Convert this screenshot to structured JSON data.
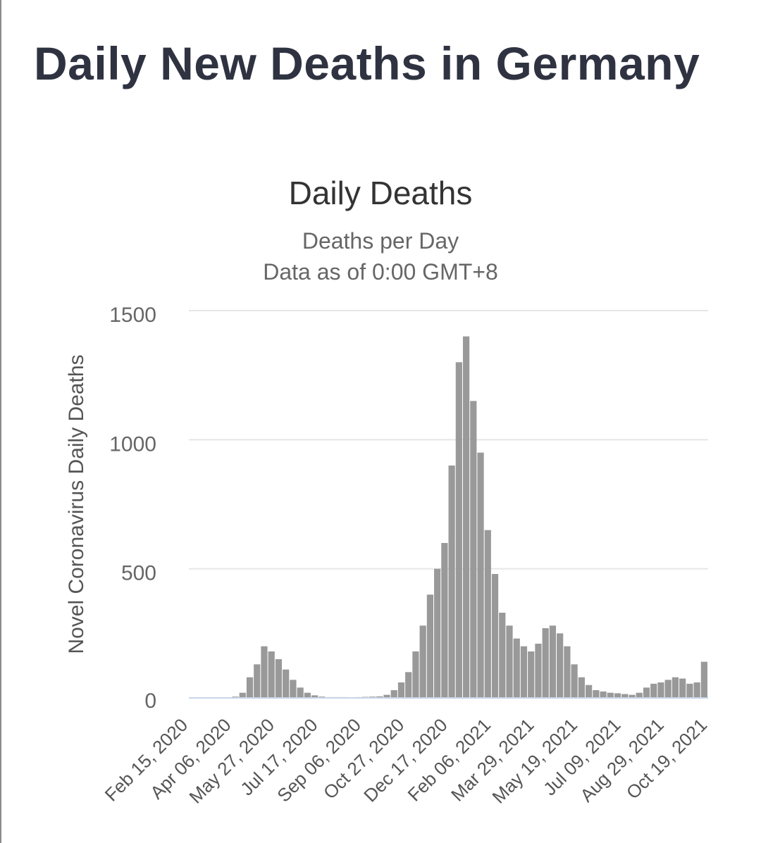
{
  "page": {
    "title": "Daily New Deaths in Germany"
  },
  "colors": {
    "bar": "#999999",
    "grid": "#e6e6e6",
    "baseline": "#c9d6e8",
    "title": "#2f3341"
  },
  "chart_data": {
    "type": "bar",
    "title": "Daily Deaths",
    "subtitle": [
      "Deaths per Day",
      "Data as of 0:00 GMT+8"
    ],
    "ylabel": "Novel Coronavirus Daily Deaths",
    "xlabel": "",
    "ylim": [
      0,
      1500
    ],
    "yticks": [
      0,
      500,
      1000,
      1500
    ],
    "xticks": [
      "Feb 15, 2020",
      "Apr 06, 2020",
      "May 27, 2020",
      "Jul 17, 2020",
      "Sep 06, 2020",
      "Oct 27, 2020",
      "Dec 17, 2020",
      "Feb 06, 2021",
      "Mar 29, 2021",
      "May 19, 2021",
      "Jul 09, 2021",
      "Aug 29, 2021",
      "Oct 19, 2021"
    ],
    "grid": true,
    "legend": "none",
    "weekly_deaths": [
      0,
      0,
      0,
      0,
      0,
      0,
      5,
      20,
      80,
      130,
      200,
      180,
      150,
      110,
      70,
      40,
      20,
      10,
      5,
      3,
      3,
      3,
      2,
      3,
      4,
      5,
      6,
      12,
      30,
      60,
      100,
      180,
      280,
      400,
      500,
      600,
      900,
      1300,
      1400,
      1150,
      950,
      650,
      480,
      330,
      280,
      230,
      200,
      180,
      210,
      270,
      280,
      250,
      200,
      130,
      80,
      50,
      30,
      25,
      20,
      18,
      15,
      12,
      20,
      40,
      55,
      60,
      70,
      80,
      75,
      55,
      60,
      140
    ]
  }
}
